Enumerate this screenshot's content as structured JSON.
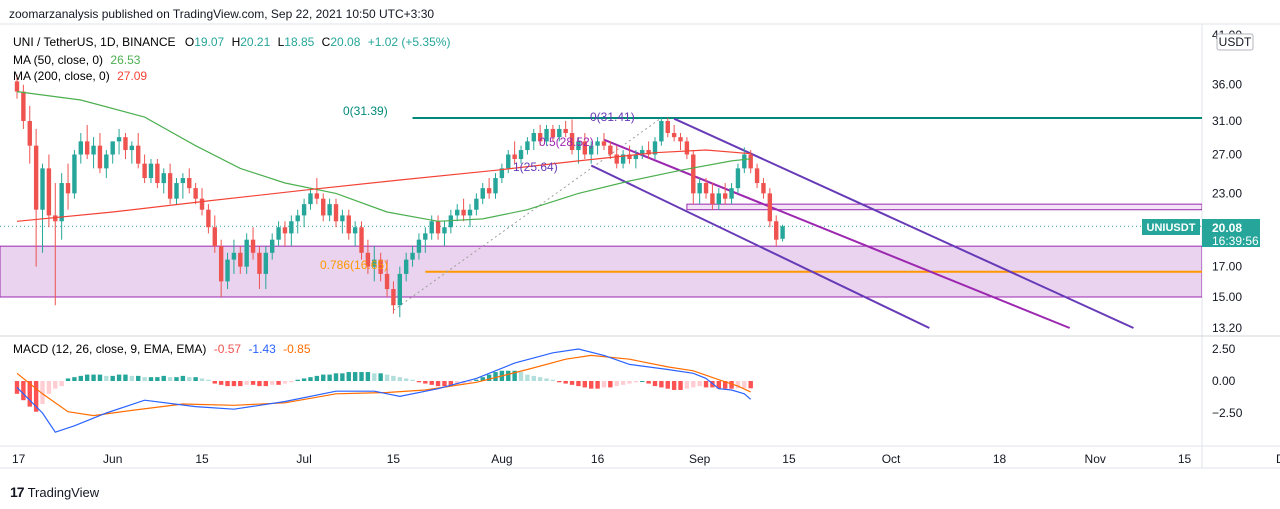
{
  "header": "zoomarzanalysis published on TradingView.com, Sep 22, 2021 10:50 UTC+3:30",
  "footer": {
    "brand": "TradingView",
    "logo": "17"
  },
  "legend": {
    "symbol": "UNI / TetherUS, 1D, BINANCE",
    "o_label": "O",
    "o": "19.07",
    "h_label": "H",
    "h": "20.21",
    "l_label": "L",
    "l": "18.85",
    "c_label": "C",
    "c": "20.08",
    "change": "+1.02 (+5.35%)",
    "ma50_label": "MA (50, close, 0)",
    "ma50": "26.53",
    "ma200_label": "MA (200, close, 0)",
    "ma200": "27.09",
    "macd_label": "MACD (12, 26, close, 9, EMA, EMA)",
    "macd_hist": "-0.57",
    "macd_line": "-1.43",
    "macd_signal": "-0.85"
  },
  "price_tag": {
    "symbol": "UNIUSDT",
    "price": "20.08",
    "countdown": "16:39:56"
  },
  "currency_badge": "USDT",
  "annotations": {
    "fib0_left": "0(31.39)",
    "fib0_right": "0(31.41)",
    "fib05": "0.5(28.52)",
    "fib1": "1(25.64)",
    "fib0786": "0.786(16.65)"
  },
  "colors": {
    "up": "#26a69a",
    "down": "#ef5350",
    "ma50": "#4caf50",
    "ma200": "#f44336",
    "macd": "#2962ff",
    "signal": "#ff6d00",
    "channel": "#673ab7",
    "midline": "#9c27b0",
    "zone": "#e1bee7",
    "fib_orange": "#ff9800",
    "fib_teal": "#00897b"
  },
  "chart_data": {
    "type": "candlestick",
    "price_axis": {
      "ticks": [
        "41.00",
        "36.00",
        "31.00",
        "27.00",
        "23.00",
        "20.00",
        "17.00",
        "15.00",
        "13.20"
      ]
    },
    "macd_axis": {
      "ticks": [
        "2.50",
        "0.00",
        "-2.50"
      ]
    },
    "time_axis": {
      "ticks": [
        "17",
        "Jun",
        "15",
        "Jul",
        "15",
        "Aug",
        "16",
        "Sep",
        "15",
        "Oct",
        "18",
        "Nov",
        "15",
        "Dec"
      ]
    },
    "start_date": "2021-05-17",
    "ohlc": [
      [
        36.5,
        37.5,
        34.0,
        35.0
      ],
      [
        35.0,
        36.0,
        30.0,
        31.0
      ],
      [
        31.0,
        33.0,
        26.0,
        28.0
      ],
      [
        28.0,
        30.0,
        17.0,
        21.5
      ],
      [
        21.5,
        26.0,
        18.0,
        25.5
      ],
      [
        25.5,
        27.0,
        20.0,
        21.0
      ],
      [
        21.0,
        24.0,
        14.5,
        20.5
      ],
      [
        20.5,
        25.0,
        19.0,
        24.0
      ],
      [
        24.0,
        26.0,
        21.5,
        23.0
      ],
      [
        23.0,
        27.5,
        22.5,
        27.0
      ],
      [
        27.0,
        29.5,
        26.0,
        28.5
      ],
      [
        28.5,
        30.5,
        26.5,
        27.0
      ],
      [
        27.0,
        29.0,
        25.5,
        28.0
      ],
      [
        28.0,
        29.5,
        25.0,
        25.5
      ],
      [
        25.5,
        27.5,
        24.5,
        27.0
      ],
      [
        27.0,
        28.5,
        26.0,
        28.5
      ],
      [
        28.5,
        30.0,
        27.0,
        29.0
      ],
      [
        29.0,
        29.5,
        26.5,
        27.5
      ],
      [
        27.5,
        28.5,
        26.0,
        28.0
      ],
      [
        28.0,
        29.5,
        25.5,
        26.0
      ],
      [
        26.0,
        27.0,
        24.0,
        24.5
      ],
      [
        24.5,
        26.5,
        24.0,
        26.0
      ],
      [
        26.0,
        26.5,
        23.5,
        24.0
      ],
      [
        24.0,
        25.5,
        23.0,
        25.0
      ],
      [
        25.0,
        26.0,
        22.0,
        22.5
      ],
      [
        22.5,
        24.5,
        22.0,
        24.0
      ],
      [
        24.0,
        25.0,
        22.5,
        24.5
      ],
      [
        24.5,
        25.5,
        23.0,
        23.5
      ],
      [
        23.5,
        24.0,
        22.0,
        22.5
      ],
      [
        22.5,
        23.5,
        21.0,
        21.5
      ],
      [
        21.5,
        22.0,
        19.5,
        20.0
      ],
      [
        20.0,
        21.0,
        18.0,
        18.5
      ],
      [
        18.5,
        19.0,
        15.0,
        16.0
      ],
      [
        16.0,
        18.0,
        15.5,
        17.5
      ],
      [
        17.5,
        19.0,
        16.5,
        18.0
      ],
      [
        18.0,
        18.5,
        16.5,
        17.0
      ],
      [
        17.0,
        19.5,
        16.5,
        19.0
      ],
      [
        19.0,
        20.0,
        17.5,
        18.0
      ],
      [
        18.0,
        18.5,
        15.5,
        16.5
      ],
      [
        16.5,
        18.5,
        15.5,
        18.0
      ],
      [
        18.0,
        19.5,
        17.5,
        19.0
      ],
      [
        19.0,
        20.5,
        18.5,
        20.0
      ],
      [
        20.0,
        20.5,
        18.5,
        19.5
      ],
      [
        19.5,
        21.0,
        18.5,
        20.5
      ],
      [
        20.5,
        21.5,
        19.5,
        21.0
      ],
      [
        21.0,
        22.5,
        20.0,
        22.0
      ],
      [
        22.0,
        23.5,
        21.5,
        23.0
      ],
      [
        23.0,
        24.5,
        22.0,
        22.5
      ],
      [
        22.5,
        23.0,
        20.5,
        21.0
      ],
      [
        21.0,
        22.5,
        20.5,
        22.0
      ],
      [
        22.0,
        22.5,
        20.0,
        20.5
      ],
      [
        20.5,
        21.5,
        19.5,
        21.0
      ],
      [
        21.0,
        21.5,
        19.0,
        19.5
      ],
      [
        19.5,
        20.5,
        18.5,
        20.0
      ],
      [
        20.0,
        20.5,
        17.5,
        18.0
      ],
      [
        18.0,
        19.0,
        16.5,
        17.0
      ],
      [
        17.0,
        18.5,
        16.0,
        17.5
      ],
      [
        17.5,
        18.0,
        16.0,
        16.5
      ],
      [
        16.5,
        17.5,
        15.0,
        15.5
      ],
      [
        15.5,
        16.0,
        14.0,
        14.5
      ],
      [
        14.5,
        17.0,
        13.8,
        16.5
      ],
      [
        16.5,
        18.0,
        16.0,
        17.5
      ],
      [
        17.5,
        18.5,
        17.0,
        18.0
      ],
      [
        18.0,
        19.5,
        17.5,
        19.0
      ],
      [
        19.0,
        20.0,
        18.0,
        19.5
      ],
      [
        19.5,
        21.0,
        19.0,
        20.5
      ],
      [
        20.5,
        21.0,
        19.0,
        19.5
      ],
      [
        19.5,
        20.5,
        18.5,
        20.0
      ],
      [
        20.0,
        21.5,
        19.5,
        21.0
      ],
      [
        21.0,
        22.0,
        20.5,
        21.5
      ],
      [
        21.5,
        22.5,
        20.5,
        21.0
      ],
      [
        21.0,
        22.0,
        20.0,
        21.5
      ],
      [
        21.5,
        23.0,
        21.0,
        22.5
      ],
      [
        22.5,
        24.0,
        22.0,
        23.5
      ],
      [
        23.5,
        24.5,
        22.5,
        23.0
      ],
      [
        23.0,
        25.0,
        22.5,
        24.5
      ],
      [
        24.5,
        26.0,
        24.0,
        25.5
      ],
      [
        25.5,
        27.5,
        25.0,
        27.0
      ],
      [
        27.0,
        28.5,
        26.0,
        26.5
      ],
      [
        26.5,
        28.0,
        26.0,
        27.5
      ],
      [
        27.5,
        29.0,
        27.0,
        28.5
      ],
      [
        28.5,
        30.0,
        27.5,
        29.5
      ],
      [
        29.5,
        30.5,
        28.0,
        28.5
      ],
      [
        28.5,
        30.5,
        28.0,
        30.0
      ],
      [
        30.0,
        30.5,
        28.5,
        29.0
      ],
      [
        29.0,
        30.5,
        28.5,
        30.0
      ],
      [
        30.0,
        31.0,
        29.0,
        29.5
      ],
      [
        29.5,
        31.2,
        27.0,
        27.5
      ],
      [
        27.5,
        29.0,
        26.0,
        28.5
      ],
      [
        28.5,
        29.5,
        26.5,
        27.0
      ],
      [
        27.0,
        28.5,
        26.0,
        28.0
      ],
      [
        28.0,
        29.0,
        27.0,
        28.5
      ],
      [
        28.5,
        29.5,
        27.5,
        28.0
      ],
      [
        28.0,
        28.5,
        26.5,
        27.0
      ],
      [
        27.0,
        28.0,
        25.5,
        26.0
      ],
      [
        26.0,
        27.5,
        25.5,
        27.0
      ],
      [
        27.0,
        28.0,
        26.0,
        26.5
      ],
      [
        26.5,
        27.5,
        25.5,
        27.0
      ],
      [
        27.0,
        28.0,
        26.5,
        27.5
      ],
      [
        27.5,
        28.5,
        26.5,
        27.0
      ],
      [
        27.0,
        29.0,
        26.5,
        28.5
      ],
      [
        28.5,
        31.4,
        28.0,
        31.0
      ],
      [
        31.0,
        31.4,
        29.0,
        29.5
      ],
      [
        29.5,
        30.5,
        28.5,
        29.0
      ],
      [
        29.0,
        29.5,
        27.5,
        28.5
      ],
      [
        28.5,
        29.0,
        26.5,
        27.0
      ],
      [
        27.0,
        27.5,
        22.0,
        23.0
      ],
      [
        23.0,
        24.5,
        22.0,
        24.0
      ],
      [
        24.0,
        24.5,
        22.5,
        23.0
      ],
      [
        23.0,
        24.0,
        21.5,
        22.0
      ],
      [
        22.0,
        23.5,
        21.5,
        23.0
      ],
      [
        23.0,
        24.0,
        22.0,
        22.5
      ],
      [
        22.5,
        24.0,
        22.0,
        23.5
      ],
      [
        23.5,
        26.0,
        23.0,
        25.5
      ],
      [
        25.5,
        27.8,
        25.0,
        27.0
      ],
      [
        27.0,
        27.5,
        25.0,
        25.5
      ],
      [
        25.5,
        26.0,
        23.5,
        24.0
      ],
      [
        24.0,
        24.5,
        22.5,
        23.0
      ],
      [
        23.0,
        23.5,
        20.0,
        20.5
      ],
      [
        20.5,
        21.0,
        18.5,
        19.0
      ],
      [
        19.07,
        20.21,
        18.85,
        20.08
      ]
    ],
    "ma50": [
      [
        0,
        35.0
      ],
      [
        10,
        33.8
      ],
      [
        20,
        31.5
      ],
      [
        28,
        28.0
      ],
      [
        35,
        25.5
      ],
      [
        42,
        24.0
      ],
      [
        50,
        23.0
      ],
      [
        58,
        21.3
      ],
      [
        66,
        20.5
      ],
      [
        73,
        20.7
      ],
      [
        80,
        21.5
      ],
      [
        88,
        23.0
      ],
      [
        96,
        24.2
      ],
      [
        104,
        25.3
      ],
      [
        112,
        26.3
      ],
      [
        115,
        26.53
      ]
    ],
    "ma200": [
      [
        0,
        20.5
      ],
      [
        15,
        21.3
      ],
      [
        30,
        22.3
      ],
      [
        45,
        23.3
      ],
      [
        60,
        24.3
      ],
      [
        75,
        25.3
      ],
      [
        88,
        26.3
      ],
      [
        100,
        27.2
      ],
      [
        108,
        27.5
      ],
      [
        115,
        27.09
      ]
    ],
    "macd_line": [
      [
        0,
        -0.5
      ],
      [
        4,
        -2.5
      ],
      [
        6,
        -4.0
      ],
      [
        9,
        -3.5
      ],
      [
        14,
        -2.5
      ],
      [
        20,
        -1.5
      ],
      [
        28,
        -2.0
      ],
      [
        34,
        -2.2
      ],
      [
        42,
        -1.6
      ],
      [
        50,
        -0.8
      ],
      [
        56,
        -0.8
      ],
      [
        60,
        -1.2
      ],
      [
        66,
        -0.6
      ],
      [
        72,
        0.2
      ],
      [
        78,
        1.4
      ],
      [
        84,
        2.2
      ],
      [
        88,
        2.5
      ],
      [
        92,
        2.0
      ],
      [
        96,
        1.3
      ],
      [
        102,
        0.9
      ],
      [
        106,
        0.6
      ],
      [
        108,
        0.2
      ],
      [
        110,
        -0.6
      ],
      [
        112,
        -0.7
      ],
      [
        114,
        -1.0
      ],
      [
        115,
        -1.43
      ]
    ],
    "macd_signal": [
      [
        0,
        0.6
      ],
      [
        4,
        -1.0
      ],
      [
        8,
        -2.4
      ],
      [
        12,
        -2.7
      ],
      [
        18,
        -2.3
      ],
      [
        26,
        -1.8
      ],
      [
        34,
        -1.9
      ],
      [
        42,
        -1.7
      ],
      [
        50,
        -1.0
      ],
      [
        58,
        -0.9
      ],
      [
        64,
        -0.7
      ],
      [
        72,
        -0.1
      ],
      [
        80,
        0.9
      ],
      [
        86,
        1.7
      ],
      [
        90,
        2.0
      ],
      [
        96,
        1.7
      ],
      [
        102,
        1.1
      ],
      [
        106,
        0.8
      ],
      [
        110,
        0.1
      ],
      [
        113,
        -0.4
      ],
      [
        115,
        -0.85
      ]
    ],
    "macd_hist": [
      -1.0,
      -1.5,
      -2.0,
      -2.4,
      -1.8,
      -1.0,
      -0.6,
      -0.4,
      0.2,
      0.3,
      0.4,
      0.5,
      0.5,
      0.5,
      0.4,
      0.4,
      0.5,
      0.5,
      0.4,
      0.4,
      0.3,
      0.3,
      0.3,
      0.4,
      0.3,
      0.3,
      0.4,
      0.3,
      0.3,
      0.2,
      0.1,
      -0.2,
      -0.3,
      -0.4,
      -0.4,
      -0.4,
      -0.3,
      -0.3,
      -0.4,
      -0.4,
      -0.3,
      -0.3,
      -0.2,
      -0.1,
      0.1,
      0.2,
      0.3,
      0.4,
      0.5,
      0.5,
      0.6,
      0.6,
      0.7,
      0.7,
      0.7,
      0.7,
      0.6,
      0.6,
      0.5,
      0.4,
      0.3,
      0.2,
      0.1,
      -0.1,
      -0.2,
      -0.3,
      -0.4,
      -0.4,
      -0.4,
      -0.3,
      -0.2,
      -0.1,
      0.1,
      0.3,
      0.5,
      0.7,
      0.8,
      0.8,
      0.8,
      0.7,
      0.5,
      0.4,
      0.3,
      0.2,
      0.1,
      -0.1,
      -0.2,
      -0.3,
      -0.4,
      -0.5,
      -0.6,
      -0.6,
      -0.5,
      -0.5,
      -0.4,
      -0.3,
      -0.2,
      -0.1,
      0.0,
      -0.2,
      -0.4,
      -0.5,
      -0.6,
      -0.7,
      -0.7,
      -0.6,
      -0.5,
      -0.4,
      -0.5,
      -0.5,
      -0.6,
      -0.6,
      -0.6,
      -0.57,
      -0.55,
      -0.57
    ],
    "zones": [
      {
        "name": "demand-zone",
        "from": 15.0,
        "to": 18.5
      },
      {
        "name": "resistance-zone",
        "from": 21.5,
        "to": 22.0,
        "start_index": 105
      }
    ],
    "hlines": [
      {
        "name": "fib-0",
        "value": 31.39,
        "start_index": 62
      },
      {
        "name": "fib-0786",
        "value": 16.65,
        "start_index": 64
      }
    ],
    "channel": {
      "upper": {
        "start": [
          103,
          31.3
        ],
        "end": [
          175,
          13.2
        ]
      },
      "mid": {
        "start": [
          92,
          28.7
        ],
        "end": [
          165,
          13.2
        ]
      },
      "lower": {
        "start": [
          90,
          25.8
        ],
        "end": [
          143,
          13.2
        ]
      }
    },
    "fib_diagonal": {
      "start": [
        59,
        14.2
      ],
      "end": [
        101,
        31.4
      ]
    }
  }
}
